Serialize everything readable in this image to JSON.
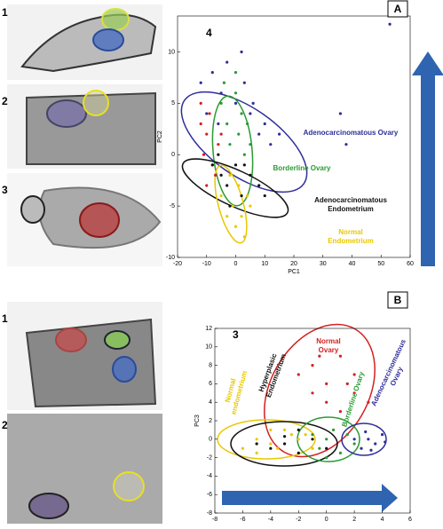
{
  "chart_data": [
    {
      "type": "scatter",
      "panel": "A",
      "panel_number": "4",
      "image_labels": [
        "1",
        "2",
        "3"
      ],
      "xlabel": "PC1",
      "ylabel": "PC2",
      "xlim": [
        -20,
        60
      ],
      "xticks": [
        -20,
        -10,
        0,
        10,
        20,
        30,
        40,
        50,
        60
      ],
      "ylim": [
        -10,
        13.5
      ],
      "yticks": [
        -10,
        -5,
        0,
        5,
        10
      ],
      "annotations": [
        {
          "text": [
            "Adenocarcinomatous Ovary"
          ],
          "color": "#2e2e9a"
        },
        {
          "text": [
            "Borderline Ovary"
          ],
          "color": "#2a9a32"
        },
        {
          "text": [
            "Adenocarcinomatous",
            "Endometrium"
          ],
          "color": "#111111"
        },
        {
          "text": [
            "Normal",
            "Endometrium"
          ],
          "color": "#e8c800"
        }
      ],
      "series": [
        {
          "color": "#2e2e9a",
          "x": [
            -12,
            -8,
            -5,
            0,
            3,
            5,
            8,
            10,
            12,
            -3,
            15,
            36,
            38,
            53,
            -10,
            2,
            6,
            -6
          ],
          "y": [
            7,
            8,
            6,
            5,
            7,
            4,
            2,
            3,
            1,
            9,
            2,
            4,
            1,
            12.7,
            4,
            10,
            5,
            3
          ]
        },
        {
          "color": "#2a9a32",
          "x": [
            -5,
            -3,
            0,
            1,
            2,
            3,
            -2,
            4,
            0,
            5,
            -4
          ],
          "y": [
            5,
            3,
            6,
            2,
            4,
            0,
            1,
            3,
            8,
            1,
            7
          ]
        },
        {
          "color": "#d42020",
          "x": [
            -12,
            -10,
            -11,
            -8,
            -9,
            -6,
            -7,
            -10,
            -5,
            -12
          ],
          "y": [
            3,
            2,
            0,
            -1,
            4,
            1,
            -2,
            -3,
            2,
            5
          ]
        },
        {
          "color": "#111111",
          "x": [
            -8,
            -5,
            -3,
            0,
            2,
            5,
            8,
            -6,
            -2,
            10,
            3
          ],
          "y": [
            -1,
            -2,
            -3,
            -1,
            -4,
            -2,
            -3,
            0,
            -5,
            -4,
            -1
          ]
        },
        {
          "color": "#e8c800",
          "x": [
            -5,
            -3,
            -1,
            0,
            2,
            3,
            1,
            5,
            -2,
            4
          ],
          "y": [
            -4,
            -6,
            -5,
            -7,
            -6,
            -8,
            -3,
            -5,
            -2,
            -4
          ]
        }
      ]
    },
    {
      "type": "scatter",
      "panel": "B",
      "panel_number": "3",
      "image_labels": [
        "1",
        "2"
      ],
      "xlabel": "PC2",
      "ylabel": "PC3",
      "xlim": [
        -8,
        6
      ],
      "xticks": [
        -8,
        -6,
        -4,
        -2,
        0,
        2,
        4,
        6
      ],
      "ylim": [
        -8,
        12
      ],
      "yticks": [
        -8,
        -6,
        -4,
        -2,
        0,
        2,
        4,
        6,
        8,
        10,
        12
      ],
      "annotations": [
        {
          "text": [
            "Normal",
            "endometrium"
          ],
          "color": "#e8c800"
        },
        {
          "text": [
            "Hyperplasic",
            "Endometrium"
          ],
          "color": "#111111"
        },
        {
          "text": [
            "Normal",
            "Ovary"
          ],
          "color": "#d42020"
        },
        {
          "text": [
            "Borderline Ovary"
          ],
          "color": "#2a9a32"
        },
        {
          "text": [
            "Adenocarcinomatous",
            "Ovary"
          ],
          "color": "#2e2e9a"
        }
      ],
      "series": [
        {
          "color": "#e8c800",
          "x": [
            -6,
            -5,
            -4,
            -3,
            -2,
            -1,
            -4,
            -5,
            -2.5,
            -3.5,
            -1.5
          ],
          "y": [
            -1,
            0,
            -0.5,
            1,
            0,
            -1,
            1,
            -1.5,
            0.5,
            -1,
            0.5
          ]
        },
        {
          "color": "#111111",
          "x": [
            -5,
            -4,
            -3,
            -2,
            -1,
            0,
            -3,
            -2
          ],
          "y": [
            -0.5,
            -1,
            0.3,
            -1.5,
            0,
            -1,
            -0.5,
            1
          ]
        },
        {
          "color": "#d42020",
          "x": [
            -2,
            -1,
            0,
            1,
            2,
            -1,
            0,
            1,
            2,
            -0.5,
            3,
            1.5
          ],
          "y": [
            7,
            8,
            6,
            9,
            7,
            5,
            4,
            3,
            5,
            9,
            4,
            6
          ]
        },
        {
          "color": "#2a9a32",
          "x": [
            -0.5,
            0,
            1,
            2,
            0.5,
            1.5,
            0,
            -1
          ],
          "y": [
            -1,
            0,
            -1.5,
            -0.5,
            1,
            0.5,
            -2,
            0.5
          ]
        },
        {
          "color": "#2e2e9a",
          "x": [
            2.5,
            3,
            3.5,
            4,
            2,
            3.2,
            4.2,
            2.8
          ],
          "y": [
            -1,
            0,
            -0.5,
            0.5,
            0,
            -1.2,
            -0.3,
            0.8
          ]
        }
      ]
    }
  ]
}
